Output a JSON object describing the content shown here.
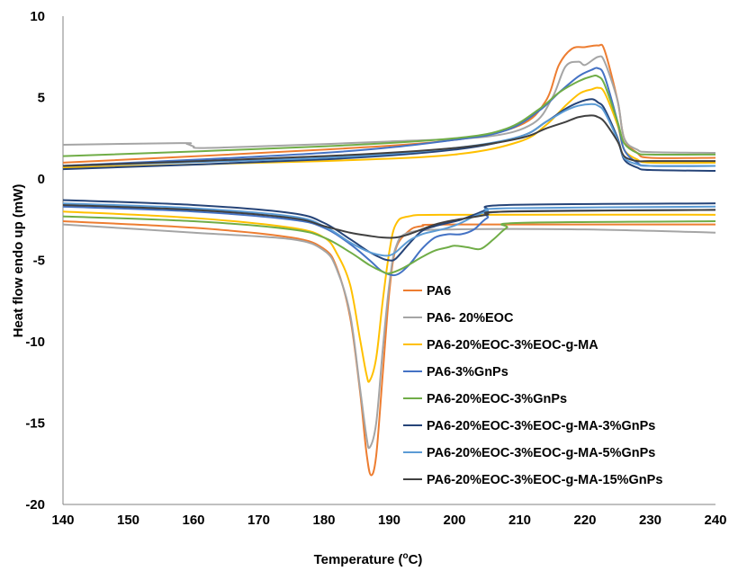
{
  "chart_data": {
    "type": "line",
    "title": "",
    "xlabel": "Temperature (",
    "xlabel_sup": "o",
    "xlabel_suffix": "C)",
    "ylabel": "Heat flow endo up (mW)",
    "xlim": [
      140,
      240
    ],
    "ylim": [
      -20,
      10
    ],
    "x_ticks": [
      140,
      150,
      160,
      170,
      180,
      190,
      200,
      210,
      220,
      230,
      240
    ],
    "x_tick_labels": [
      "140",
      "150",
      "160",
      "170",
      "180",
      "190",
      "200",
      "210",
      "220",
      "230",
      "240"
    ],
    "y_ticks": [
      10,
      5,
      0,
      -5,
      -10,
      -15,
      -20
    ],
    "y_tick_labels": [
      "10",
      "5",
      "0",
      "-5",
      "-10",
      "-15",
      "-20"
    ],
    "grid": false,
    "legend_position": "bottom-right",
    "series": [
      {
        "name": "PA6",
        "color": "#ED7D31",
        "heating": [
          [
            140,
            1.0
          ],
          [
            180,
            1.8
          ],
          [
            200,
            2.4
          ],
          [
            210,
            3.3
          ],
          [
            214,
            4.8
          ],
          [
            216,
            7.0
          ],
          [
            218,
            8.0
          ],
          [
            220,
            8.1
          ],
          [
            222,
            8.2
          ],
          [
            223,
            7.9
          ],
          [
            225,
            4.8
          ],
          [
            226,
            2.5
          ],
          [
            228,
            1.6
          ],
          [
            230,
            1.3
          ],
          [
            240,
            1.3
          ]
        ],
        "cooling": [
          [
            140,
            -2.6
          ],
          [
            160,
            -3.0
          ],
          [
            175,
            -3.6
          ],
          [
            180,
            -4.3
          ],
          [
            182,
            -5.5
          ],
          [
            184,
            -8.5
          ],
          [
            185.5,
            -13.0
          ],
          [
            186.5,
            -16.8
          ],
          [
            187.2,
            -18.2
          ],
          [
            188,
            -17.0
          ],
          [
            189,
            -12.0
          ],
          [
            190,
            -7.0
          ],
          [
            191,
            -4.3
          ],
          [
            193,
            -3.2
          ],
          [
            195,
            -2.9
          ],
          [
            200,
            -2.8
          ],
          [
            240,
            -2.8
          ]
        ]
      },
      {
        "name": "PA6- 20%EOC",
        "color": "#A5A5A5",
        "heating": [
          [
            140,
            2.1
          ],
          [
            158,
            2.2
          ],
          [
            159,
            2.15
          ],
          [
            160,
            2.0
          ],
          [
            161,
            1.9
          ],
          [
            170,
            2.0
          ],
          [
            190,
            2.3
          ],
          [
            205,
            2.6
          ],
          [
            212,
            3.4
          ],
          [
            215,
            5.0
          ],
          [
            217,
            6.9
          ],
          [
            219,
            7.2
          ],
          [
            220,
            7.0
          ],
          [
            222,
            7.5
          ],
          [
            223,
            7.2
          ],
          [
            225,
            4.8
          ],
          [
            226,
            2.5
          ],
          [
            228,
            1.8
          ],
          [
            230,
            1.65
          ],
          [
            240,
            1.6
          ]
        ],
        "cooling": [
          [
            140,
            -2.8
          ],
          [
            160,
            -3.3
          ],
          [
            175,
            -3.7
          ],
          [
            180,
            -4.4
          ],
          [
            182,
            -5.6
          ],
          [
            184,
            -8.3
          ],
          [
            185.5,
            -12.8
          ],
          [
            186.5,
            -15.8
          ],
          [
            187,
            -16.5
          ],
          [
            188,
            -15.0
          ],
          [
            189,
            -10.5
          ],
          [
            190,
            -6.5
          ],
          [
            191,
            -4.2
          ],
          [
            193,
            -3.3
          ],
          [
            200,
            -3.1
          ],
          [
            220,
            -3.1
          ],
          [
            240,
            -3.3
          ]
        ]
      },
      {
        "name": "PA6-20%EOC-3%EOC-g-MA",
        "color": "#FFC000",
        "heating": [
          [
            140,
            0.7
          ],
          [
            180,
            1.1
          ],
          [
            200,
            1.5
          ],
          [
            210,
            2.3
          ],
          [
            214,
            3.3
          ],
          [
            217,
            4.5
          ],
          [
            219,
            5.2
          ],
          [
            220,
            5.4
          ],
          [
            221,
            5.5
          ],
          [
            222,
            5.6
          ],
          [
            223,
            5.3
          ],
          [
            225,
            3.3
          ],
          [
            226,
            1.8
          ],
          [
            228,
            1.2
          ],
          [
            230,
            1.0
          ],
          [
            240,
            1.0
          ]
        ],
        "cooling": [
          [
            140,
            -2.0
          ],
          [
            160,
            -2.4
          ],
          [
            175,
            -3.0
          ],
          [
            180,
            -3.6
          ],
          [
            182,
            -4.6
          ],
          [
            184,
            -6.5
          ],
          [
            185.5,
            -9.8
          ],
          [
            186.5,
            -12.0
          ],
          [
            187,
            -12.4
          ],
          [
            188,
            -11.0
          ],
          [
            189,
            -7.5
          ],
          [
            190,
            -4.5
          ],
          [
            191,
            -2.8
          ],
          [
            193,
            -2.3
          ],
          [
            200,
            -2.2
          ],
          [
            240,
            -2.2
          ]
        ]
      },
      {
        "name": "PA6-3%GnPs",
        "color": "#4472C4",
        "heating": [
          [
            140,
            0.8
          ],
          [
            180,
            1.6
          ],
          [
            200,
            2.4
          ],
          [
            208,
            3.0
          ],
          [
            213,
            4.2
          ],
          [
            216,
            5.3
          ],
          [
            219,
            6.3
          ],
          [
            221,
            6.7
          ],
          [
            222,
            6.8
          ],
          [
            223,
            6.3
          ],
          [
            225,
            3.5
          ],
          [
            226,
            1.8
          ],
          [
            228,
            1.0
          ],
          [
            230,
            0.8
          ],
          [
            240,
            0.8
          ]
        ],
        "cooling": [
          [
            140,
            -1.7
          ],
          [
            160,
            -2.0
          ],
          [
            175,
            -2.5
          ],
          [
            180,
            -3.0
          ],
          [
            184,
            -4.0
          ],
          [
            187,
            -5.0
          ],
          [
            189,
            -5.7
          ],
          [
            191,
            -5.9
          ],
          [
            193,
            -5.3
          ],
          [
            195,
            -4.3
          ],
          [
            197,
            -3.6
          ],
          [
            199,
            -3.4
          ],
          [
            201,
            -3.4
          ],
          [
            203,
            -3.1
          ],
          [
            205,
            -2.4
          ],
          [
            208,
            -2.0
          ],
          [
            240,
            -1.9
          ]
        ]
      },
      {
        "name": "PA6-20%EOC-3%GnPs",
        "color": "#70AD47",
        "heating": [
          [
            140,
            1.4
          ],
          [
            180,
            2.0
          ],
          [
            200,
            2.5
          ],
          [
            208,
            3.1
          ],
          [
            213,
            4.3
          ],
          [
            216,
            5.3
          ],
          [
            219,
            6.0
          ],
          [
            221,
            6.3
          ],
          [
            222,
            6.3
          ],
          [
            223,
            5.8
          ],
          [
            225,
            3.5
          ],
          [
            226,
            2.2
          ],
          [
            228,
            1.6
          ],
          [
            230,
            1.5
          ],
          [
            240,
            1.5
          ]
        ],
        "cooling": [
          [
            140,
            -2.3
          ],
          [
            160,
            -2.6
          ],
          [
            175,
            -3.1
          ],
          [
            180,
            -3.6
          ],
          [
            184,
            -4.5
          ],
          [
            187,
            -5.3
          ],
          [
            189,
            -5.7
          ],
          [
            190,
            -5.8
          ],
          [
            192,
            -5.5
          ],
          [
            195,
            -4.8
          ],
          [
            197,
            -4.4
          ],
          [
            199,
            -4.2
          ],
          [
            200,
            -4.1
          ],
          [
            202,
            -4.2
          ],
          [
            204,
            -4.3
          ],
          [
            206,
            -3.7
          ],
          [
            208,
            -3.0
          ],
          [
            210,
            -2.7
          ],
          [
            240,
            -2.6
          ]
        ]
      },
      {
        "name": "PA6-20%EOC-3%EOC-g-MA-3%GnPs",
        "color": "#264478",
        "heating": [
          [
            140,
            0.6
          ],
          [
            180,
            1.2
          ],
          [
            200,
            1.8
          ],
          [
            210,
            2.6
          ],
          [
            214,
            3.5
          ],
          [
            217,
            4.3
          ],
          [
            219,
            4.7
          ],
          [
            221,
            4.9
          ],
          [
            222,
            4.7
          ],
          [
            223,
            4.3
          ],
          [
            225,
            2.5
          ],
          [
            226,
            1.2
          ],
          [
            228,
            0.7
          ],
          [
            230,
            0.55
          ],
          [
            240,
            0.5
          ]
        ],
        "cooling": [
          [
            140,
            -1.3
          ],
          [
            160,
            -1.6
          ],
          [
            175,
            -2.1
          ],
          [
            180,
            -2.7
          ],
          [
            184,
            -3.7
          ],
          [
            187,
            -4.5
          ],
          [
            189,
            -4.9
          ],
          [
            190,
            -5.0
          ],
          [
            191,
            -4.9
          ],
          [
            193,
            -4.0
          ],
          [
            195,
            -3.2
          ],
          [
            197,
            -2.9
          ],
          [
            199,
            -2.7
          ],
          [
            201,
            -2.5
          ],
          [
            203,
            -2.2
          ],
          [
            205,
            -1.9
          ],
          [
            208,
            -1.6
          ],
          [
            240,
            -1.5
          ]
        ]
      },
      {
        "name": "PA6-20%EOC-3%EOC-g-MA-5%GnPs",
        "color": "#5B9BD5",
        "heating": [
          [
            140,
            0.8
          ],
          [
            180,
            1.3
          ],
          [
            200,
            1.9
          ],
          [
            210,
            2.6
          ],
          [
            214,
            3.5
          ],
          [
            217,
            4.2
          ],
          [
            219,
            4.5
          ],
          [
            221,
            4.6
          ],
          [
            222,
            4.5
          ],
          [
            223,
            4.1
          ],
          [
            225,
            2.4
          ],
          [
            226,
            1.3
          ],
          [
            228,
            0.9
          ],
          [
            230,
            0.8
          ],
          [
            240,
            0.8
          ]
        ],
        "cooling": [
          [
            140,
            -1.5
          ],
          [
            160,
            -1.8
          ],
          [
            175,
            -2.3
          ],
          [
            180,
            -2.9
          ],
          [
            184,
            -3.9
          ],
          [
            187,
            -4.5
          ],
          [
            189,
            -4.7
          ],
          [
            190,
            -4.7
          ],
          [
            191,
            -4.5
          ],
          [
            193,
            -3.8
          ],
          [
            195,
            -3.4
          ],
          [
            197,
            -3.2
          ],
          [
            199,
            -3.0
          ],
          [
            201,
            -2.7
          ],
          [
            203,
            -2.3
          ],
          [
            205,
            -2.0
          ],
          [
            208,
            -1.8
          ],
          [
            240,
            -1.7
          ]
        ]
      },
      {
        "name": "PA6-20%EOC-3%EOC-g-MA-15%GnPs",
        "color": "#404040",
        "heating": [
          [
            140,
            0.8
          ],
          [
            180,
            1.4
          ],
          [
            200,
            1.9
          ],
          [
            210,
            2.5
          ],
          [
            214,
            3.1
          ],
          [
            217,
            3.5
          ],
          [
            219,
            3.8
          ],
          [
            221,
            3.9
          ],
          [
            222,
            3.8
          ],
          [
            223,
            3.5
          ],
          [
            225,
            2.3
          ],
          [
            226,
            1.4
          ],
          [
            228,
            1.1
          ],
          [
            230,
            1.1
          ],
          [
            240,
            1.1
          ]
        ],
        "cooling": [
          [
            140,
            -1.6
          ],
          [
            160,
            -1.9
          ],
          [
            175,
            -2.4
          ],
          [
            180,
            -2.9
          ],
          [
            184,
            -3.3
          ],
          [
            187,
            -3.5
          ],
          [
            189,
            -3.6
          ],
          [
            191,
            -3.6
          ],
          [
            193,
            -3.4
          ],
          [
            195,
            -3.1
          ],
          [
            197,
            -2.8
          ],
          [
            199,
            -2.6
          ],
          [
            202,
            -2.4
          ],
          [
            205,
            -2.2
          ],
          [
            208,
            -2.0
          ],
          [
            240,
            -1.9
          ]
        ]
      }
    ]
  }
}
